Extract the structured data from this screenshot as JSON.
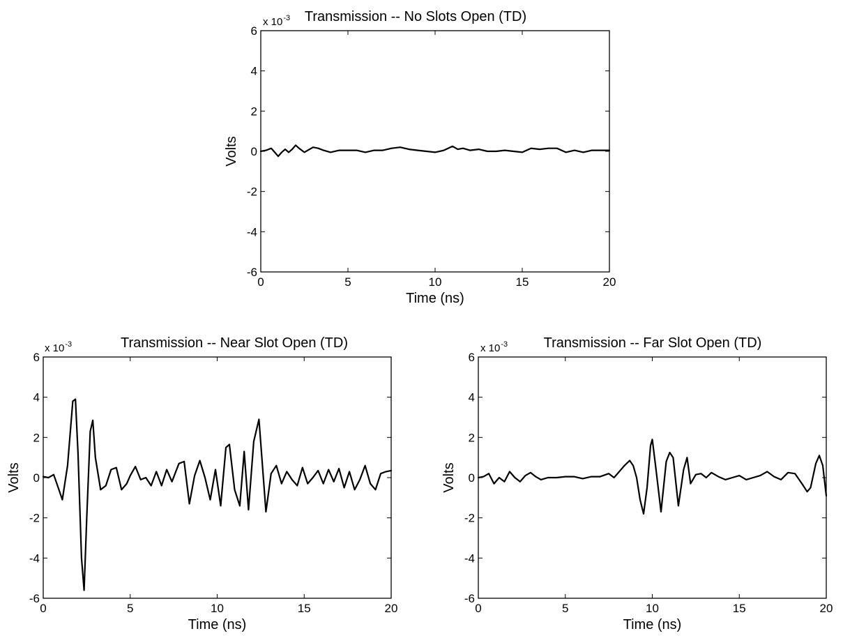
{
  "chart_data": [
    {
      "type": "line",
      "title": "Transmission -- No Slots Open (TD)",
      "xlabel": "Time (ns)",
      "ylabel": "Volts",
      "exponent_base": "x 10",
      "exponent_power": "-3",
      "xlim": [
        0,
        20
      ],
      "ylim": [
        -6,
        6
      ],
      "xticks": [
        "0",
        "5",
        "10",
        "15",
        "20"
      ],
      "yticks": [
        "-6",
        "-4",
        "-2",
        "0",
        "2",
        "4",
        "6"
      ],
      "grid": false,
      "line_color": "#000000",
      "series": [
        {
          "x": [
            0,
            0.3,
            0.6,
            0.8,
            1.0,
            1.2,
            1.4,
            1.6,
            1.8,
            2.0,
            2.2,
            2.5,
            2.8,
            3.0,
            3.3,
            3.6,
            4.0,
            4.5,
            5.0,
            5.5,
            6.0,
            6.5,
            7.0,
            7.5,
            8.0,
            8.5,
            9.0,
            9.5,
            10.0,
            10.5,
            11.0,
            11.3,
            11.6,
            12.0,
            12.5,
            13.0,
            13.5,
            14.0,
            14.5,
            15.0,
            15.5,
            16.0,
            16.5,
            17.0,
            17.5,
            18.0,
            18.5,
            19.0,
            19.5,
            20.0
          ],
          "y": [
            0,
            0.05,
            0.15,
            -0.05,
            -0.25,
            -0.05,
            0.1,
            -0.05,
            0.1,
            0.3,
            0.15,
            -0.05,
            0.1,
            0.2,
            0.15,
            0.05,
            -0.05,
            0.05,
            0.05,
            0.05,
            -0.05,
            0.05,
            0.05,
            0.15,
            0.2,
            0.1,
            0.05,
            0.0,
            -0.05,
            0.05,
            0.25,
            0.1,
            0.15,
            0.05,
            0.1,
            0.0,
            0.0,
            0.05,
            0.0,
            -0.05,
            0.15,
            0.1,
            0.15,
            0.15,
            -0.05,
            0.05,
            -0.05,
            0.05,
            0.05,
            0.05
          ]
        }
      ]
    },
    {
      "type": "line",
      "title": "Transmission -- Near Slot Open (TD)",
      "xlabel": "Time (ns)",
      "ylabel": "Volts",
      "exponent_base": "x 10",
      "exponent_power": "-3",
      "xlim": [
        0,
        20
      ],
      "ylim": [
        -6,
        6
      ],
      "xticks": [
        "0",
        "5",
        "10",
        "15",
        "20"
      ],
      "yticks": [
        "-6",
        "-4",
        "-2",
        "0",
        "2",
        "4",
        "6"
      ],
      "grid": false,
      "line_color": "#000000",
      "series": [
        {
          "x": [
            0,
            0.3,
            0.6,
            0.9,
            1.1,
            1.4,
            1.7,
            1.85,
            2.0,
            2.2,
            2.35,
            2.5,
            2.7,
            2.85,
            3.0,
            3.3,
            3.6,
            3.9,
            4.2,
            4.5,
            4.8,
            5.0,
            5.3,
            5.6,
            5.9,
            6.2,
            6.5,
            6.8,
            7.1,
            7.4,
            7.8,
            8.1,
            8.4,
            8.7,
            9.0,
            9.3,
            9.6,
            9.9,
            10.2,
            10.5,
            10.7,
            11.0,
            11.3,
            11.55,
            11.8,
            12.1,
            12.4,
            12.8,
            13.1,
            13.4,
            13.7,
            14.0,
            14.3,
            14.6,
            14.9,
            15.2,
            15.5,
            15.8,
            16.1,
            16.4,
            16.7,
            17.0,
            17.3,
            17.6,
            17.9,
            18.2,
            18.5,
            18.8,
            19.1,
            19.4,
            19.7,
            20.0
          ],
          "y": [
            0.05,
            0.0,
            0.15,
            -0.6,
            -1.1,
            0.6,
            3.8,
            3.9,
            1.2,
            -4.0,
            -5.6,
            -2.0,
            2.3,
            2.85,
            1.0,
            -0.6,
            -0.4,
            0.4,
            0.5,
            -0.6,
            -0.3,
            0.1,
            0.55,
            -0.1,
            0.0,
            -0.4,
            0.3,
            -0.4,
            0.4,
            -0.2,
            0.7,
            0.8,
            -1.3,
            0.1,
            0.85,
            0.0,
            -1.1,
            0.4,
            -1.4,
            1.5,
            1.65,
            -0.6,
            -1.4,
            1.3,
            -1.6,
            1.8,
            2.9,
            -1.7,
            0.2,
            0.6,
            -0.3,
            0.3,
            -0.1,
            -0.4,
            0.5,
            -0.3,
            0.0,
            0.35,
            -0.3,
            0.4,
            -0.2,
            0.45,
            -0.5,
            0.3,
            -0.6,
            -0.1,
            0.6,
            -0.3,
            -0.6,
            0.2,
            0.3,
            0.35
          ]
        }
      ]
    },
    {
      "type": "line",
      "title": "Transmission -- Far Slot Open (TD)",
      "xlabel": "Time (ns)",
      "ylabel": "Volts",
      "exponent_base": "x 10",
      "exponent_power": "-3",
      "xlim": [
        0,
        20
      ],
      "ylim": [
        -6,
        6
      ],
      "xticks": [
        "0",
        "5",
        "10",
        "15",
        "20"
      ],
      "yticks": [
        "-6",
        "-4",
        "-2",
        "0",
        "2",
        "4",
        "6"
      ],
      "grid": false,
      "line_color": "#000000",
      "series": [
        {
          "x": [
            0,
            0.3,
            0.6,
            0.9,
            1.2,
            1.5,
            1.8,
            2.1,
            2.4,
            2.7,
            3.0,
            3.3,
            3.6,
            4.0,
            4.5,
            5.0,
            5.5,
            6.0,
            6.5,
            7.0,
            7.5,
            7.8,
            8.1,
            8.4,
            8.7,
            8.9,
            9.1,
            9.3,
            9.5,
            9.7,
            9.9,
            10.0,
            10.2,
            10.5,
            10.8,
            11.0,
            11.2,
            11.5,
            11.8,
            12.0,
            12.2,
            12.5,
            12.8,
            13.1,
            13.4,
            13.8,
            14.2,
            14.6,
            15.0,
            15.4,
            15.8,
            16.2,
            16.6,
            17.0,
            17.4,
            17.8,
            18.2,
            18.6,
            18.9,
            19.1,
            19.4,
            19.6,
            19.8,
            20.0
          ],
          "y": [
            0,
            0.05,
            0.2,
            -0.3,
            0.0,
            -0.2,
            0.3,
            0.0,
            -0.2,
            0.1,
            0.25,
            0.05,
            -0.1,
            0.0,
            0.0,
            0.05,
            0.05,
            -0.05,
            0.05,
            0.05,
            0.2,
            0.0,
            0.3,
            0.6,
            0.85,
            0.6,
            0.0,
            -1.1,
            -1.8,
            -0.5,
            1.6,
            1.9,
            0.5,
            -1.7,
            0.8,
            1.25,
            1.0,
            -1.4,
            0.4,
            1.0,
            -0.3,
            0.15,
            0.2,
            0.0,
            0.25,
            0.05,
            -0.1,
            0.0,
            0.1,
            -0.1,
            0.0,
            0.1,
            0.3,
            0.05,
            -0.1,
            0.25,
            0.2,
            -0.3,
            -0.7,
            -0.5,
            0.7,
            1.1,
            0.6,
            -0.9
          ]
        }
      ]
    }
  ]
}
